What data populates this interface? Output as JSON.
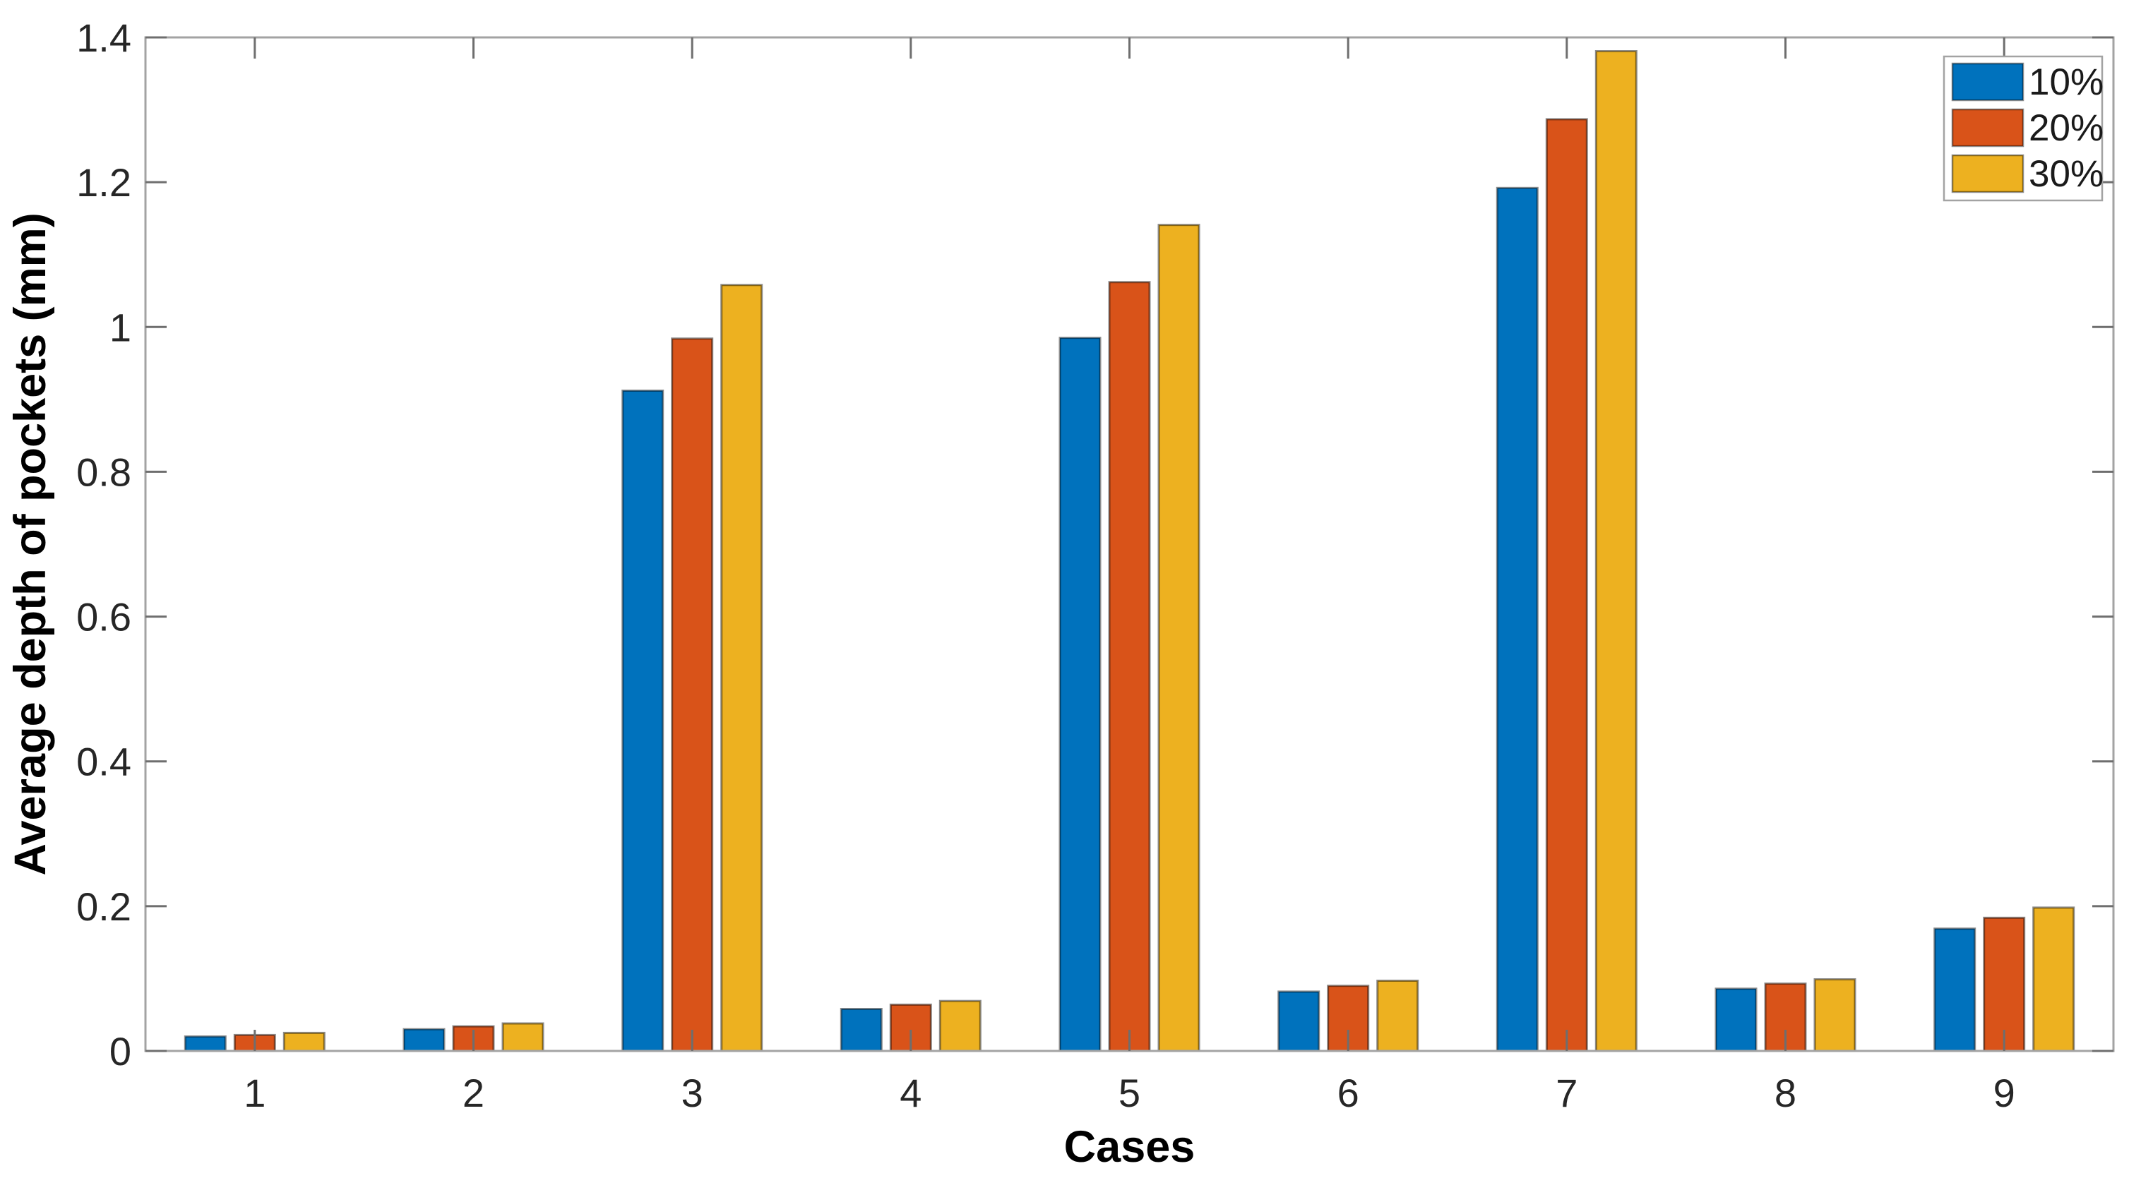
{
  "chart_data": {
    "type": "bar",
    "title": "",
    "xlabel": "Cases",
    "ylabel": "Average depth of pockets (mm)",
    "categories": [
      "1",
      "2",
      "3",
      "4",
      "5",
      "6",
      "7",
      "8",
      "9"
    ],
    "series": [
      {
        "name": "10%",
        "color": "#0072BD",
        "values": [
          0.02,
          0.03,
          0.912,
          0.058,
          0.985,
          0.082,
          1.192,
          0.086,
          0.169
        ]
      },
      {
        "name": "20%",
        "color": "#D95319",
        "values": [
          0.022,
          0.034,
          0.984,
          0.064,
          1.062,
          0.09,
          1.287,
          0.093,
          0.184
        ]
      },
      {
        "name": "30%",
        "color": "#EDB120",
        "values": [
          0.025,
          0.038,
          1.058,
          0.069,
          1.141,
          0.097,
          1.381,
          0.099,
          0.198
        ]
      }
    ],
    "ylim": [
      0,
      1.4
    ],
    "yticks": [
      0,
      0.2,
      0.4,
      0.6,
      0.8,
      1,
      1.2,
      1.4
    ],
    "grid": false,
    "legend": {
      "position": "top-right",
      "entries": [
        "10%",
        "20%",
        "30%"
      ]
    },
    "colors": {
      "spine": "#a3a3a3",
      "tick": "#6e6e6e",
      "bar_edge": "rgba(0,0,0,0.45)",
      "legend_border": "#a3a3a3",
      "background": "#ffffff"
    }
  }
}
